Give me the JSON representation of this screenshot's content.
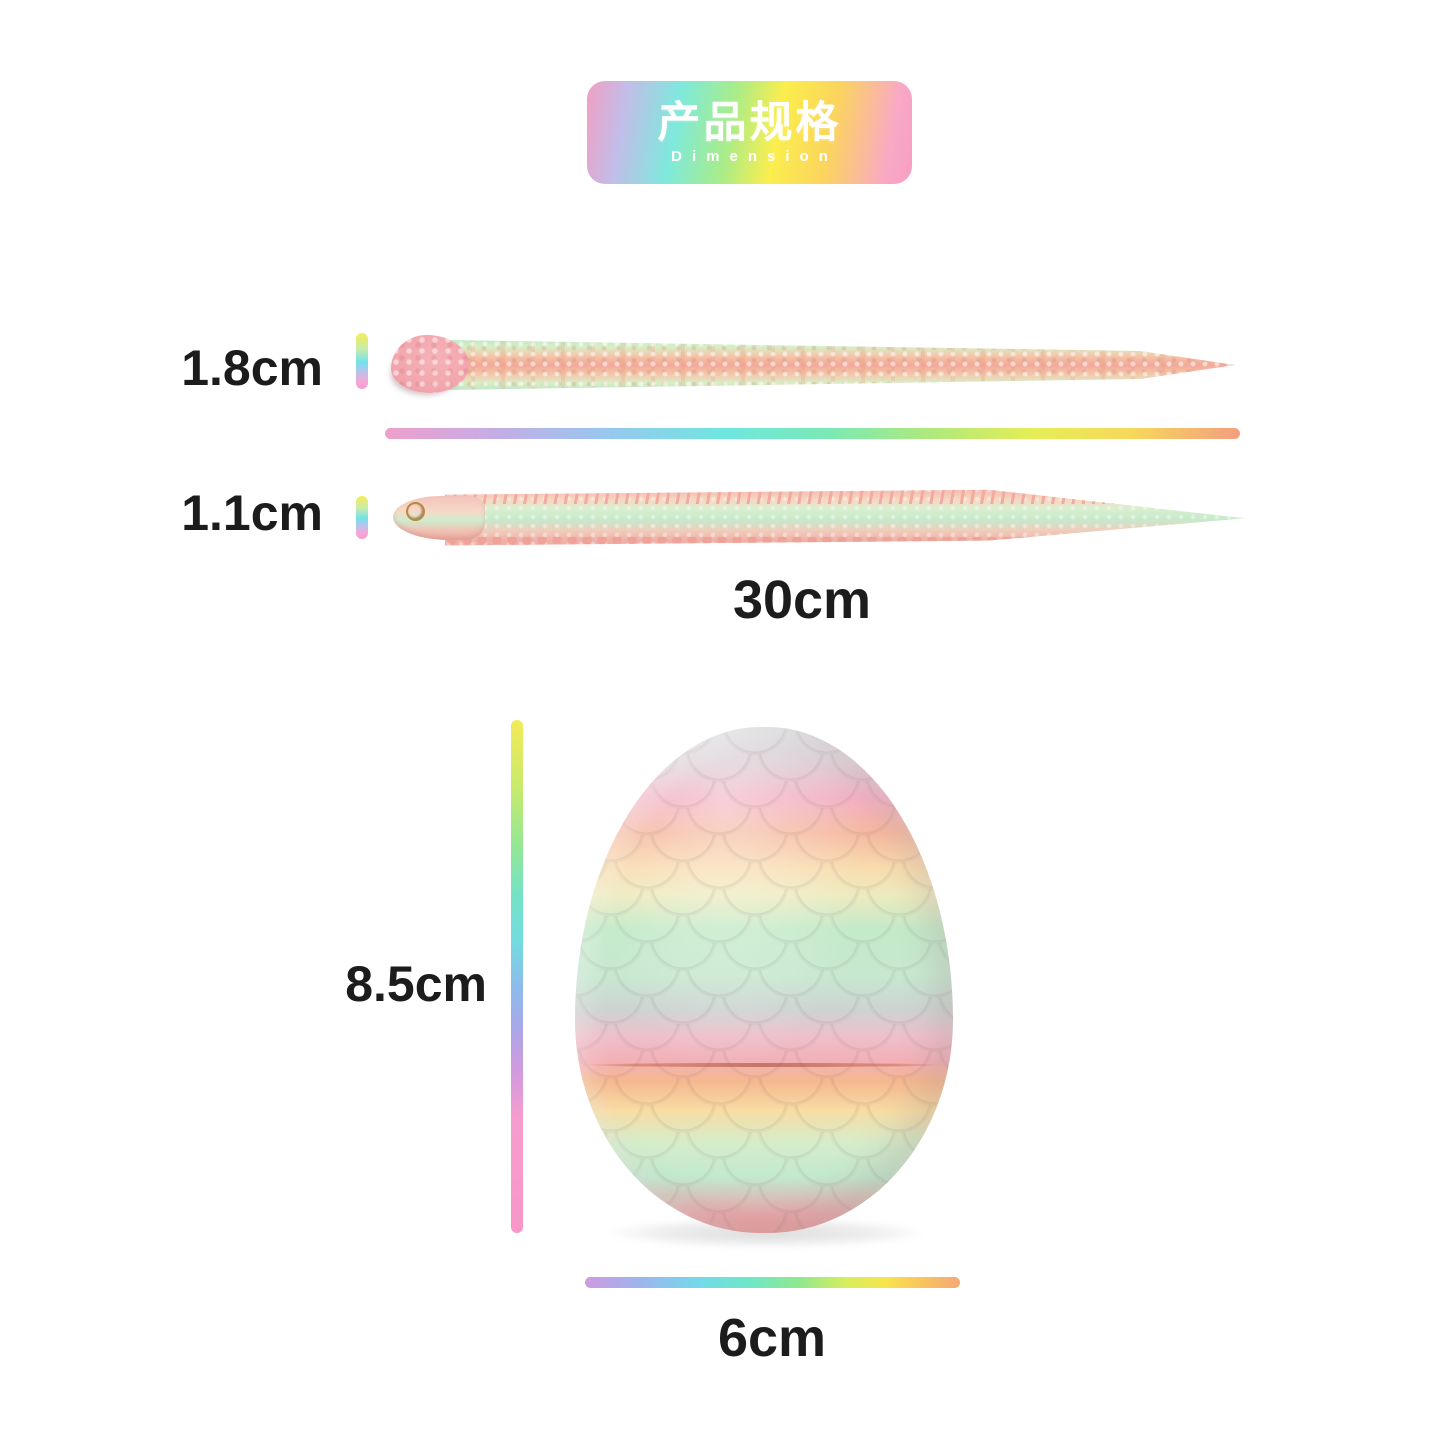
{
  "header": {
    "title_zh": "产品规格",
    "title_en": "Dimension"
  },
  "dimensions": {
    "snake_top_height": "1.8cm",
    "snake_side_height": "1.1cm",
    "snake_length": "30cm",
    "egg_height": "8.5cm",
    "egg_width": "6cm"
  },
  "products": {
    "snake_top_view": "rainbow pastel articulated snake, top view, pink head, mint and peach body tapering to a point",
    "snake_side_view": "rainbow pastel articulated snake, side view, gold eye, pink spiky ridge over mint band",
    "egg": "rainbow pastel dragon egg with scale texture and horizontal opening seam"
  },
  "colors": {
    "background": "#ffffff",
    "label_text": "#1c1c1c",
    "badge_text": "#ffffff",
    "badge_gradient": [
      "#f19fc3",
      "#c3bce8",
      "#7ee9dc",
      "#a9ec89",
      "#fbee4d",
      "#fbd45e",
      "#f9a8c6"
    ],
    "length_line_gradient": [
      "#ef9fca",
      "#c4ade6",
      "#98c7ef",
      "#6fe7df",
      "#7be9b4",
      "#b0e97c",
      "#e5ee55",
      "#f6d95b",
      "#f49e80"
    ],
    "egg_height_line_gradient": [
      "#f3ea58",
      "#cdea6a",
      "#97e792",
      "#74e3c4",
      "#73dcdf",
      "#8cbcec",
      "#d09ade",
      "#f79cce",
      "#f897c8"
    ],
    "egg_width_line_gradient": [
      "#cf9ae0",
      "#9fb4ec",
      "#74d8ea",
      "#6ce8c8",
      "#8fe88f",
      "#d8ee5a",
      "#f7e44e",
      "#f8c45c",
      "#f5a878"
    ],
    "indicator_bar_gradient": [
      "#f5ec55",
      "#c9ecaa",
      "#72e2ea",
      "#f79ad2"
    ],
    "egg_band_gradient": [
      "#cfd3d6",
      "#f2aec2",
      "#f5b99f",
      "#f8dcae",
      "#c3eac9",
      "#ced3d2",
      "#f3b0b6",
      "#f6b88e",
      "#f7dda4",
      "#c2e9cf",
      "#e89898"
    ]
  }
}
